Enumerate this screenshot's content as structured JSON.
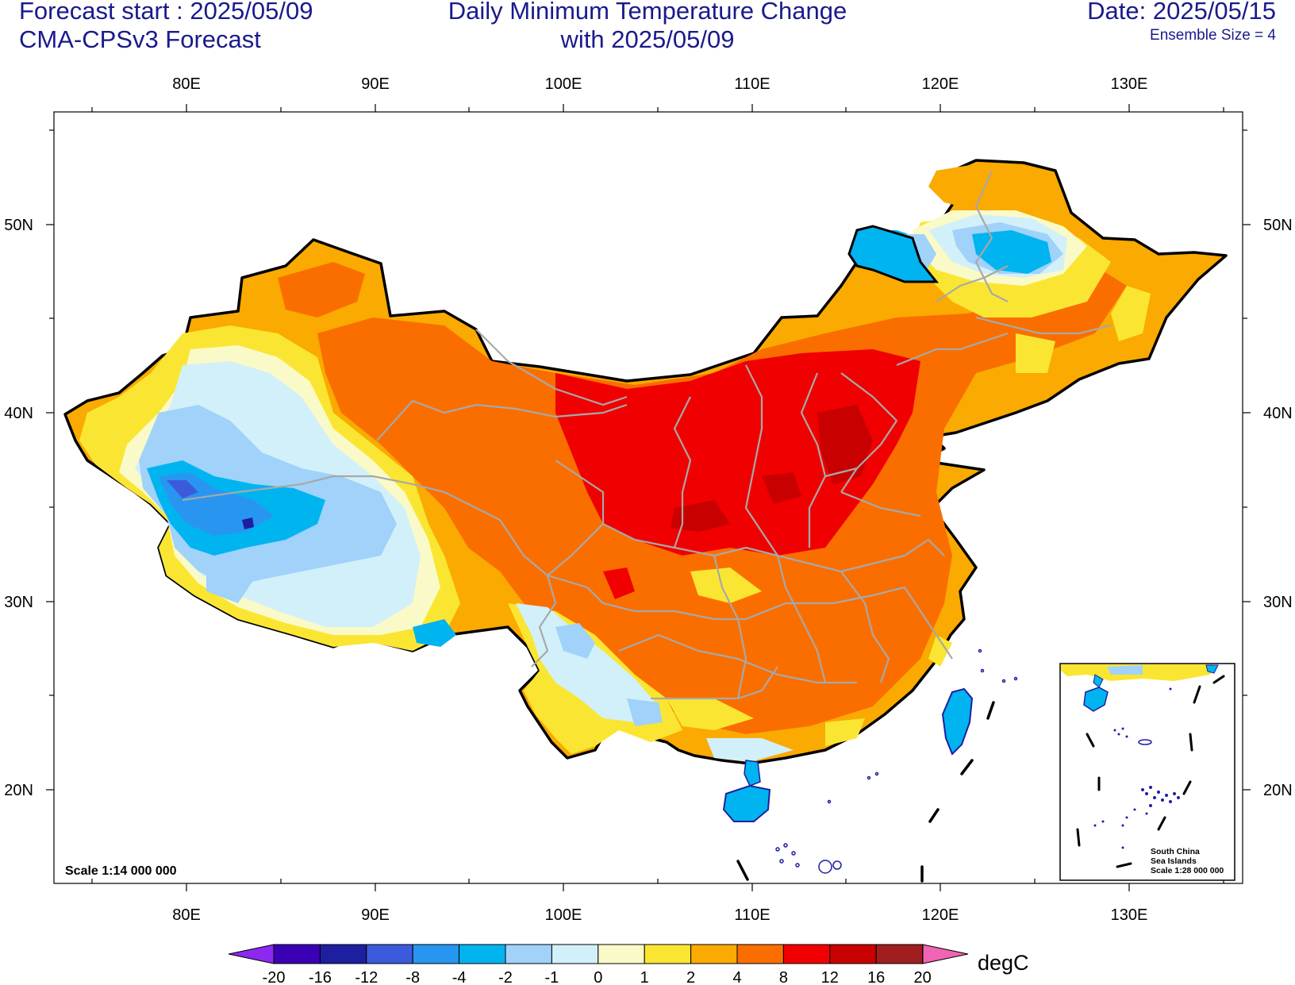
{
  "header": {
    "forecast_start": "Forecast start : 2025/05/09",
    "model": "CMA-CPSv3 Forecast",
    "title_line1": "Daily Minimum Temperature Change",
    "title_line2": "with 2025/05/09",
    "date": "Date: 2025/05/15",
    "ensemble": "Ensemble Size = 4"
  },
  "map": {
    "lon_ticks": [
      "80E",
      "90E",
      "100E",
      "110E",
      "120E",
      "130E"
    ],
    "lat_ticks": [
      "50N",
      "40N",
      "30N",
      "20N"
    ],
    "scale_label": "Scale 1:14 000 000",
    "inset": {
      "line1": "South China",
      "line2": "Sea Islands",
      "line3": "Scale 1:28 000 000"
    }
  },
  "colorbar": {
    "unit": "degC",
    "labels": [
      "-20",
      "-16",
      "-12",
      "-8",
      "-4",
      "-2",
      "-1",
      "0",
      "1",
      "2",
      "4",
      "8",
      "12",
      "16",
      "20"
    ],
    "colors": [
      "#3a00b4",
      "#1e1ea0",
      "#3b5bdc",
      "#2896f0",
      "#00b4f0",
      "#a0d2fa",
      "#d2f0fa",
      "#fafac8",
      "#fae632",
      "#faaa00",
      "#fa6e00",
      "#f00000",
      "#c80000",
      "#a01e1e"
    ],
    "low_arrow_color": "#8c28f0",
    "high_arrow_color": "#f064b4"
  }
}
